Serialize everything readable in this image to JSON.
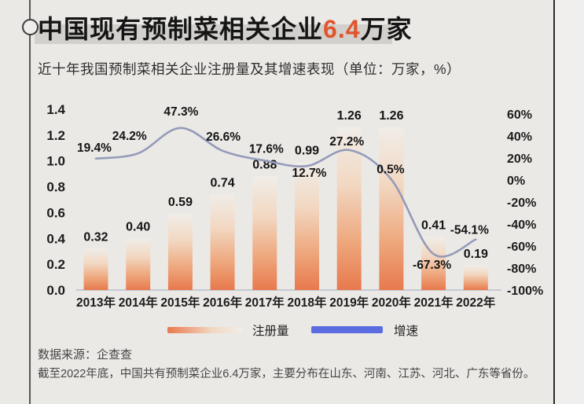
{
  "page": {
    "bg_color": "#ebe9e6",
    "title": {
      "text_before": "中国现有预制菜相关企业",
      "number": "6.4",
      "text_after": "万家",
      "number_color": "#e0552d"
    },
    "subtitle": "近十年我国预制菜相关企业注册量及其增速表现（单位：万家，%）",
    "legend": {
      "bar_label": "注册量",
      "line_label": "增速"
    },
    "footer": {
      "source": "数据来源：企查查",
      "note": "截至2022年底，中国共有预制菜企业6.4万家，主要分布在山东、河南、江苏、河北、广东等省份。"
    }
  },
  "colors": {
    "bar_gradient_top": "#f0ede8",
    "bar_gradient_mid_light": "#f2d8c2",
    "bar_gradient_mid": "#eea87e",
    "bar_gradient_bottom": "#e8794d",
    "line": "#949bb9",
    "legend_line_swatch": "#5b6ce0",
    "axis_text": "#1c1c1c",
    "baseline": "#b7c1cd",
    "label_text": "#141414"
  },
  "chart_data": {
    "type": "combo",
    "title": "近十年我国预制菜相关企业注册量及其增速表现",
    "unit": "万家, %",
    "grid": false,
    "legend_position": "bottom",
    "categories": [
      "2013年",
      "2014年",
      "2015年",
      "2016年",
      "2017年",
      "2018年",
      "2019年",
      "2020年",
      "2021年",
      "2022年"
    ],
    "series": [
      {
        "name": "注册量",
        "type": "bar",
        "axis": "left",
        "values": [
          0.32,
          0.4,
          0.59,
          0.74,
          0.88,
          0.99,
          1.26,
          1.26,
          0.41,
          0.19
        ],
        "labels": [
          "0.32",
          "0.40",
          "0.59",
          "0.74",
          "0.88",
          "0.99",
          "1.26",
          "1.26",
          "0.41",
          "0.19"
        ]
      },
      {
        "name": "增速",
        "type": "line",
        "axis": "right",
        "values": [
          19.4,
          24.2,
          47.3,
          26.6,
          17.6,
          12.7,
          27.2,
          0.5,
          -67.3,
          -54.1
        ],
        "labels": [
          "19.4%",
          "24.2%",
          "47.3%",
          "26.6%",
          "17.6%",
          "12.7%",
          "27.2%",
          "0.5%",
          "-67.3%",
          "-54.1%"
        ]
      }
    ],
    "left_axis": {
      "min": 0,
      "max": 1.4,
      "ticks": [
        0.0,
        0.2,
        0.4,
        0.6,
        0.8,
        1.0,
        1.2,
        1.4
      ],
      "tick_labels": [
        "0.0",
        "0.2",
        "0.4",
        "0.6",
        "0.8",
        "1.0",
        "1.2",
        "1.4"
      ]
    },
    "right_axis": {
      "min": -100,
      "max": 60,
      "ticks": [
        60,
        40,
        20,
        0,
        -20,
        -40,
        -60,
        -80,
        -100
      ],
      "tick_labels": [
        "60%",
        "40%",
        "20%",
        "0%",
        "-20%",
        "-40%",
        "-60%",
        "-80%",
        "-100%"
      ]
    }
  }
}
